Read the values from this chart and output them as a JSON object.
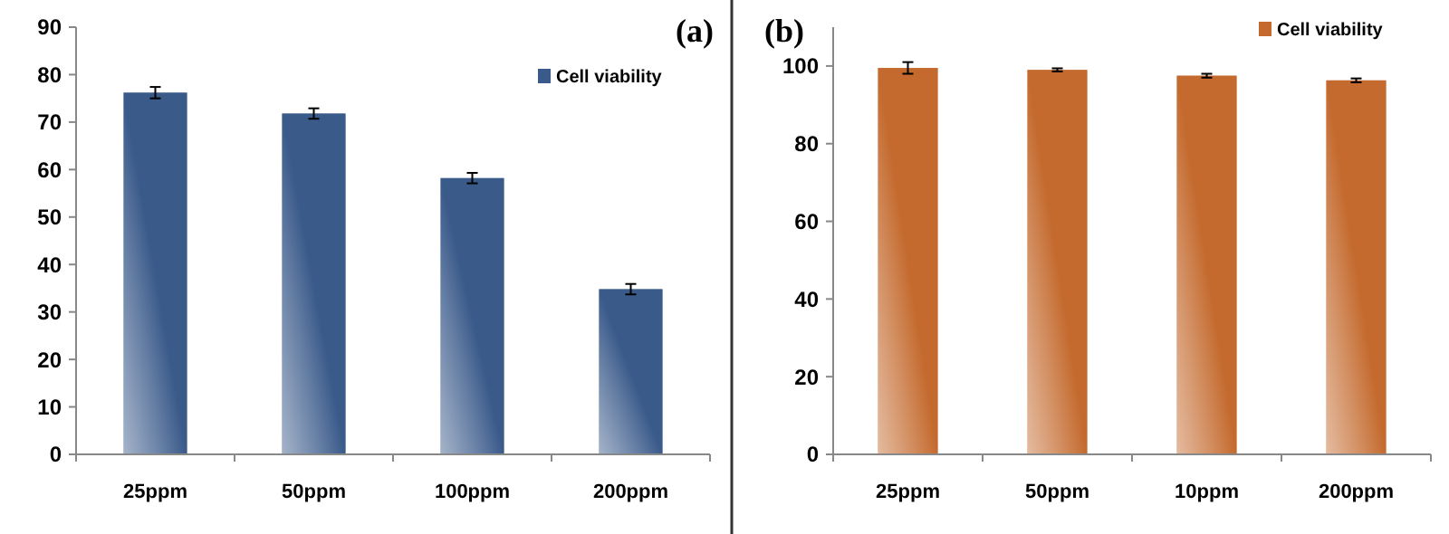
{
  "chart_data": [
    {
      "type": "bar",
      "title": "(a)",
      "categories": [
        "25ppm",
        "50ppm",
        "100ppm",
        "200ppm"
      ],
      "series": [
        {
          "name": "Cell viability",
          "color": "#3a5a8a",
          "values": [
            76.2,
            71.8,
            58.2,
            34.8
          ],
          "errors": [
            1.2,
            1.1,
            1.1,
            1.1
          ]
        }
      ],
      "ylim": [
        0,
        90
      ],
      "yticks": [
        0,
        10,
        20,
        30,
        40,
        50,
        60,
        70,
        80,
        90
      ],
      "grid": false,
      "legend": "top right"
    },
    {
      "type": "bar",
      "title": "(b)",
      "categories": [
        "25ppm",
        "50ppm",
        "10ppm",
        "200ppm"
      ],
      "series": [
        {
          "name": "Cell viability",
          "color": "#c46a2e",
          "values": [
            99.5,
            99,
            97.5,
            96.3
          ],
          "errors": [
            1.5,
            0.4,
            0.5,
            0.5
          ]
        }
      ],
      "ylim": [
        0,
        110
      ],
      "yticks": [
        0,
        20,
        40,
        60,
        80,
        100
      ],
      "grid": false,
      "legend": "top right"
    }
  ]
}
